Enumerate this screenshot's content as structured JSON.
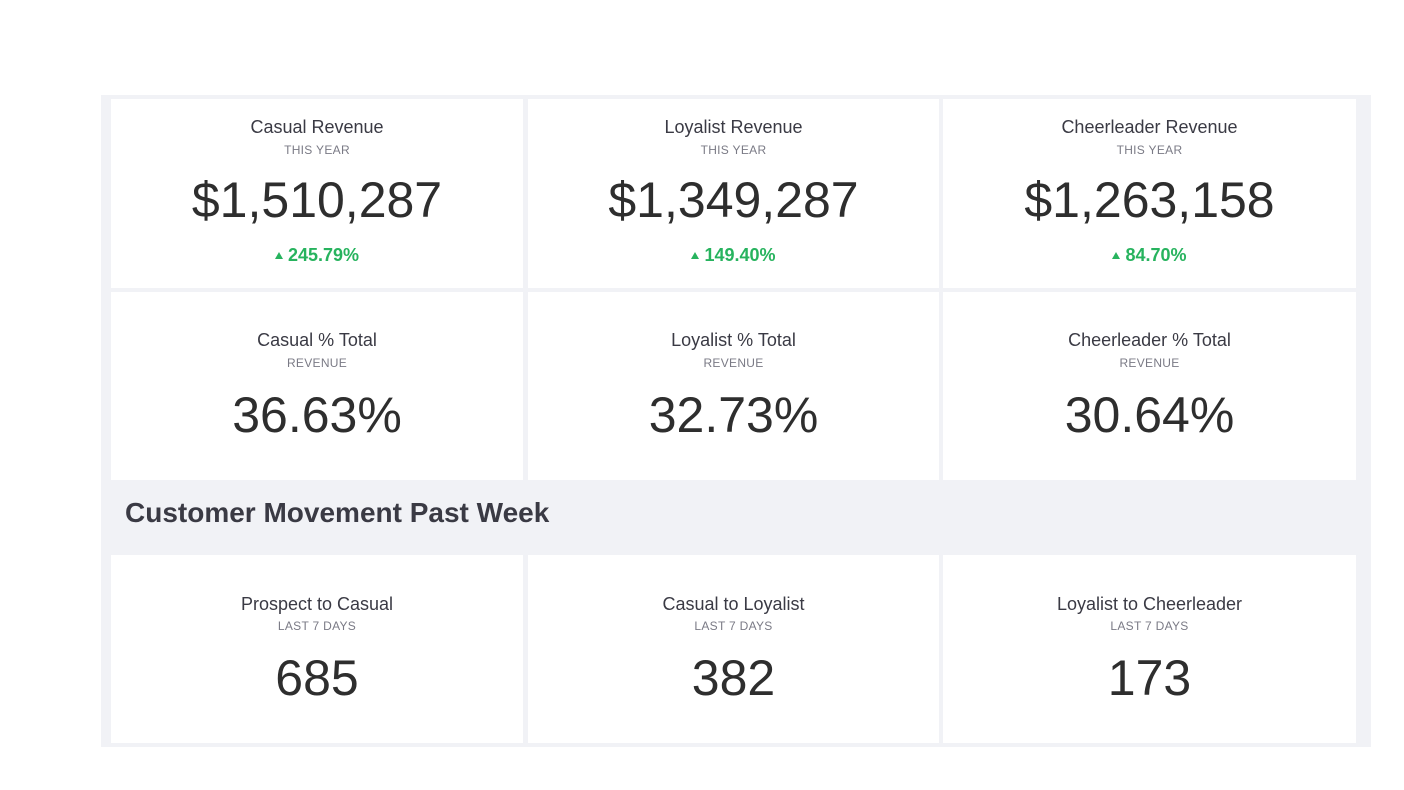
{
  "revenue_tiles": [
    {
      "title": "Casual Revenue",
      "subtitle": "THIS YEAR",
      "value": "$1,510,287",
      "change": "245.79%",
      "direction": "up"
    },
    {
      "title": "Loyalist Revenue",
      "subtitle": "THIS YEAR",
      "value": "$1,349,287",
      "change": "149.40%",
      "direction": "up"
    },
    {
      "title": "Cheerleader Revenue",
      "subtitle": "THIS YEAR",
      "value": "$1,263,158",
      "change": "84.70%",
      "direction": "up"
    }
  ],
  "share_tiles": [
    {
      "title": "Casual % Total",
      "subtitle": "REVENUE",
      "value": "36.63%"
    },
    {
      "title": "Loyalist % Total",
      "subtitle": "REVENUE",
      "value": "32.73%"
    },
    {
      "title": "Cheerleader % Total",
      "subtitle": "REVENUE",
      "value": "30.64%"
    }
  ],
  "section_heading": "Customer Movement Past Week",
  "movement_tiles": [
    {
      "title": "Prospect to Casual",
      "subtitle": "LAST 7 DAYS",
      "value": "685"
    },
    {
      "title": "Casual to Loyalist",
      "subtitle": "LAST 7 DAYS",
      "value": "382"
    },
    {
      "title": "Loyalist to Cheerleader",
      "subtitle": "LAST 7 DAYS",
      "value": "173"
    }
  ],
  "colors": {
    "positive": "#27b35e",
    "background": "#f1f2f6"
  }
}
